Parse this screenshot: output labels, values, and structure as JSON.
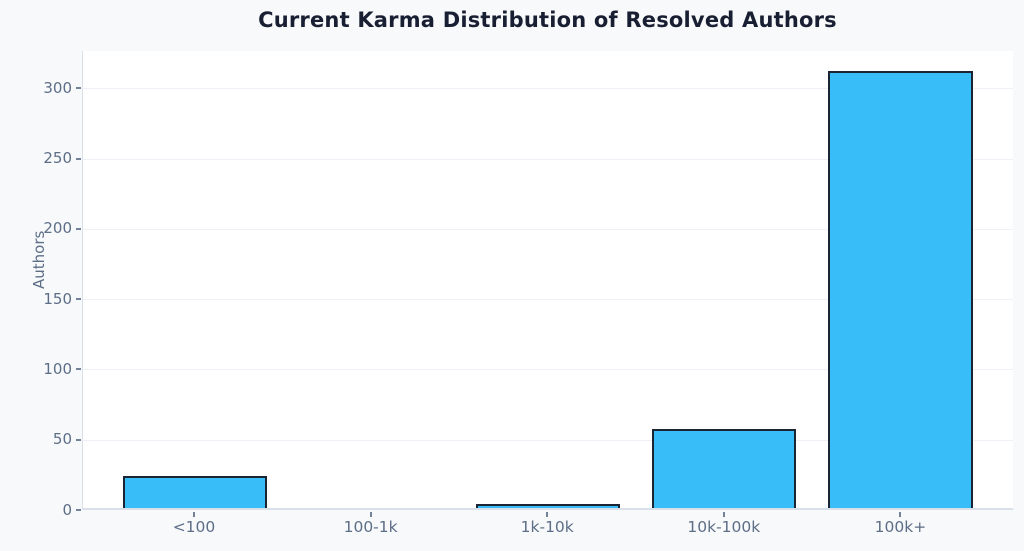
{
  "chart_data": {
    "type": "bar",
    "title": "Current Karma Distribution of Resolved Authors",
    "categories": [
      "<100",
      "100-1k",
      "1k-10k",
      "10k-100k",
      "100k+"
    ],
    "values": [
      23,
      0,
      3,
      56,
      311
    ],
    "xlabel": "",
    "ylabel": "Authors",
    "ylim": [
      0,
      326.5
    ],
    "yticks": [
      0,
      50,
      100,
      150,
      200,
      250,
      300
    ],
    "grid": true,
    "legend": false,
    "colors": {
      "bar_fill": "#38bdf8",
      "bar_border": "#1a2433",
      "background": "#f7f9fb",
      "plot_background": "#ffffff",
      "gridline": "#eef1f5",
      "axis_line": "#d9e0ea",
      "tick_label": "#5d6e87",
      "title": "#191f33"
    }
  }
}
